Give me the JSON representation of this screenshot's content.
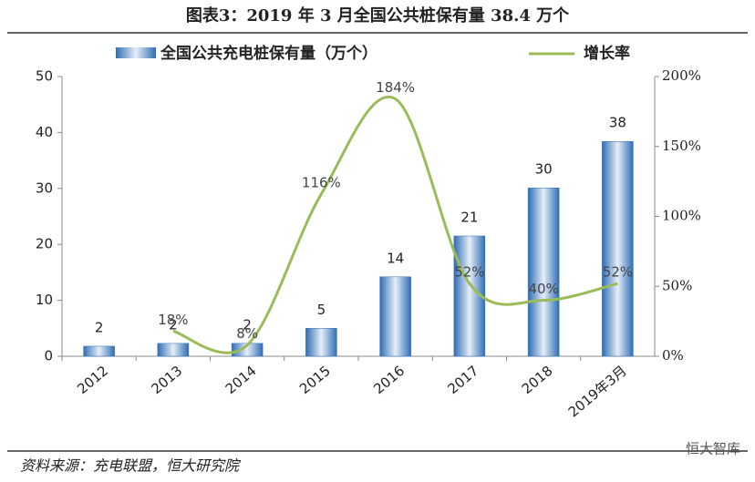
{
  "chart_data": {
    "type": "bar-line",
    "title": "图表3：2019 年 3 月全国公共桩保有量 38.4 万个",
    "categories": [
      "2012",
      "2013",
      "2014",
      "2015",
      "2016",
      "2017",
      "2018",
      "2019年3月"
    ],
    "series": [
      {
        "name": "全国公共充电桩保有量（万个）",
        "type": "bar",
        "color": "#2e6db4",
        "values": [
          1.8,
          2.3,
          2.3,
          5.0,
          14.2,
          21.5,
          30.1,
          38.4
        ],
        "value_labels": [
          "2",
          "2",
          "2",
          "5",
          "14",
          "21",
          "30",
          "38"
        ]
      },
      {
        "name": "增长率",
        "type": "line",
        "axis": "y2",
        "color": "#9bbb59",
        "values": [
          null,
          18,
          8,
          116,
          184,
          52,
          40,
          52
        ],
        "value_labels": [
          null,
          "18%",
          "8%",
          "116%",
          "184%",
          "52%",
          "40%",
          "52%"
        ]
      }
    ],
    "ylim": [
      0,
      50
    ],
    "yticks": [
      0,
      10,
      20,
      30,
      40,
      50
    ],
    "y2lim": [
      0,
      200
    ],
    "y2ticks": [
      {
        "value": 0,
        "label": "0%"
      },
      {
        "value": 50,
        "label": "50%"
      },
      {
        "value": 100,
        "label": "100%"
      },
      {
        "value": 150,
        "label": "150%"
      },
      {
        "value": 200,
        "label": "200%"
      }
    ],
    "source": "资料来源：充电联盟，恒大研究院",
    "watermark": "恒大智库"
  }
}
